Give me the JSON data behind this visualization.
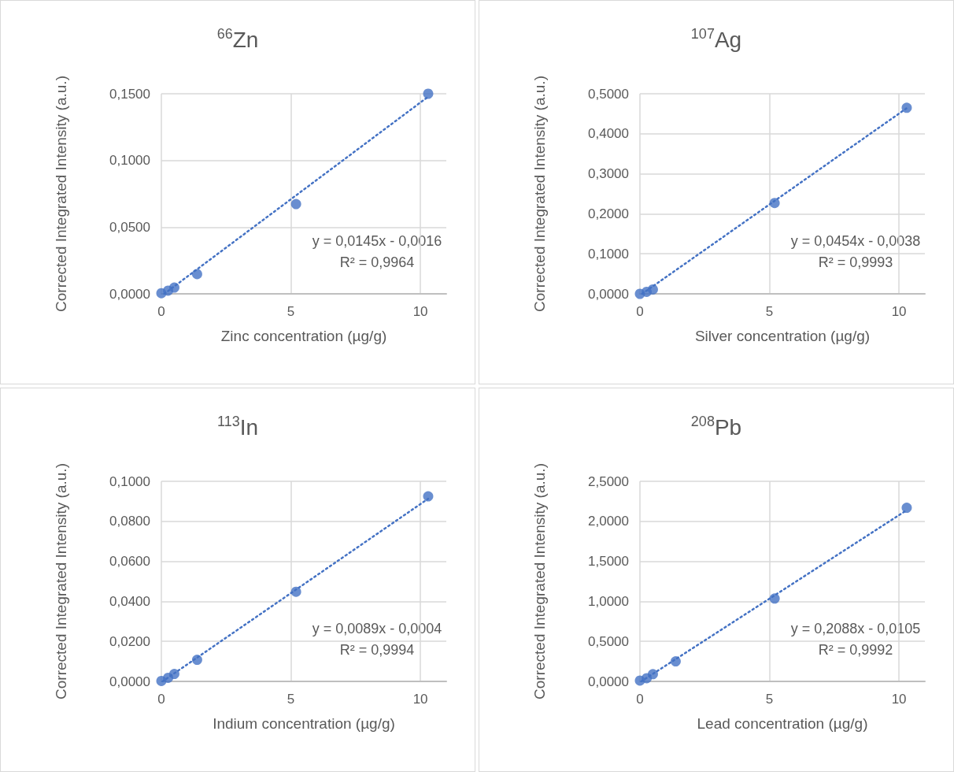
{
  "chart_data": [
    {
      "type": "scatter",
      "title": "$^{66}$Zn",
      "xlabel": "Zinc concentration (µg/g)",
      "ylabel": "Corrected Integrated Intensity (a.u.)",
      "grid": true,
      "x": [
        0,
        0.26,
        0.5,
        1.38,
        5.2,
        10.3
      ],
      "series": [
        {
          "marker": "circle",
          "color": "#4472c4",
          "values": [
            0.0005,
            0.0024,
            0.0047,
            0.0148,
            0.0673,
            0.15
          ]
        },
        {
          "type": "line",
          "marker": "none",
          "color": "#4472c4",
          "line_style": "dotted",
          "x": [
            0.11,
            10.3
          ],
          "values": [
            0,
            0.1478
          ]
        }
      ],
      "xlim": [
        0,
        11
      ],
      "xticks": [
        0,
        5,
        10
      ],
      "ylim": [
        0,
        0.15
      ],
      "yticks": [
        {
          "value": 0,
          "label": "0,0000"
        },
        {
          "value": 0.05,
          "label": "0,0500"
        },
        {
          "value": 0.1,
          "label": "0,1000"
        },
        {
          "value": 0.15,
          "label": "0,1500"
        }
      ],
      "annotations": [
        "y = 0,0145x - 0,0016",
        "R² = 0,9964"
      ]
    },
    {
      "type": "scatter",
      "title": "$^{107}$Ag",
      "xlabel": "Silver concentration (µg/g)",
      "ylabel": "Corrected Integrated Intensity (a.u.)",
      "grid": true,
      "x": [
        0,
        0.26,
        0.5,
        5.2,
        10.3
      ],
      "series": [
        {
          "marker": "circle",
          "color": "#4472c4",
          "values": [
            0,
            0.005,
            0.011,
            0.227,
            0.465
          ]
        },
        {
          "type": "line",
          "marker": "none",
          "color": "#4472c4",
          "line_style": "dotted",
          "x": [
            0.084,
            10.3
          ],
          "values": [
            0,
            0.464
          ]
        }
      ],
      "xlim": [
        0,
        11
      ],
      "xticks": [
        0,
        5,
        10
      ],
      "ylim": [
        0,
        0.5
      ],
      "yticks": [
        {
          "value": 0,
          "label": "0,0000"
        },
        {
          "value": 0.1,
          "label": "0,1000"
        },
        {
          "value": 0.2,
          "label": "0,2000"
        },
        {
          "value": 0.3,
          "label": "0,3000"
        },
        {
          "value": 0.4,
          "label": "0,4000"
        },
        {
          "value": 0.5,
          "label": "0,5000"
        }
      ],
      "annotations": [
        "y = 0,0454x - 0,0038",
        "R² = 0,9993"
      ]
    },
    {
      "type": "scatter",
      "title": "$^{113}$In",
      "xlabel": "Indium concentration (µg/g)",
      "ylabel": "Corrected Integrated Intensity (a.u.)",
      "grid": true,
      "x": [
        0,
        0.26,
        0.5,
        1.38,
        5.2,
        10.3
      ],
      "series": [
        {
          "marker": "circle",
          "color": "#4472c4",
          "values": [
            0.0002,
            0.0018,
            0.0037,
            0.0108,
            0.0448,
            0.0925
          ]
        },
        {
          "type": "line",
          "marker": "none",
          "color": "#4472c4",
          "line_style": "dotted",
          "x": [
            0.045,
            10.3
          ],
          "values": [
            0,
            0.0913
          ]
        }
      ],
      "xlim": [
        0,
        11
      ],
      "xticks": [
        0,
        5,
        10
      ],
      "ylim": [
        0,
        0.1
      ],
      "yticks": [
        {
          "value": 0,
          "label": "0,0000"
        },
        {
          "value": 0.02,
          "label": "0,0200"
        },
        {
          "value": 0.04,
          "label": "0,0400"
        },
        {
          "value": 0.06,
          "label": "0,0600"
        },
        {
          "value": 0.08,
          "label": "0,0800"
        },
        {
          "value": 0.1,
          "label": "0,1000"
        }
      ],
      "annotations": [
        "y = 0,0089x - 0,0004",
        "R² = 0,9994"
      ]
    },
    {
      "type": "scatter",
      "title": "$^{208}$Pb",
      "xlabel": "Lead concentration (µg/g)",
      "ylabel": "Corrected Integrated Intensity (a.u.)",
      "grid": true,
      "x": [
        0,
        0.26,
        0.5,
        1.38,
        5.2,
        10.3
      ],
      "series": [
        {
          "marker": "circle",
          "color": "#4472c4",
          "values": [
            0.01,
            0.04,
            0.09,
            0.25,
            1.035,
            2.17
          ]
        },
        {
          "type": "line",
          "marker": "none",
          "color": "#4472c4",
          "line_style": "dotted",
          "x": [
            0.05,
            10.3
          ],
          "values": [
            0,
            2.14
          ]
        }
      ],
      "xlim": [
        0,
        11
      ],
      "xticks": [
        0,
        5,
        10
      ],
      "ylim": [
        0,
        2.5
      ],
      "yticks": [
        {
          "value": 0,
          "label": "0,0000"
        },
        {
          "value": 0.5,
          "label": "0,5000"
        },
        {
          "value": 1,
          "label": "1,0000"
        },
        {
          "value": 1.5,
          "label": "1,5000"
        },
        {
          "value": 2,
          "label": "2,0000"
        },
        {
          "value": 2.5,
          "label": "2,5000"
        }
      ],
      "annotations": [
        "y = 0,2088x - 0,0105",
        "R² = 0,9992"
      ]
    }
  ]
}
